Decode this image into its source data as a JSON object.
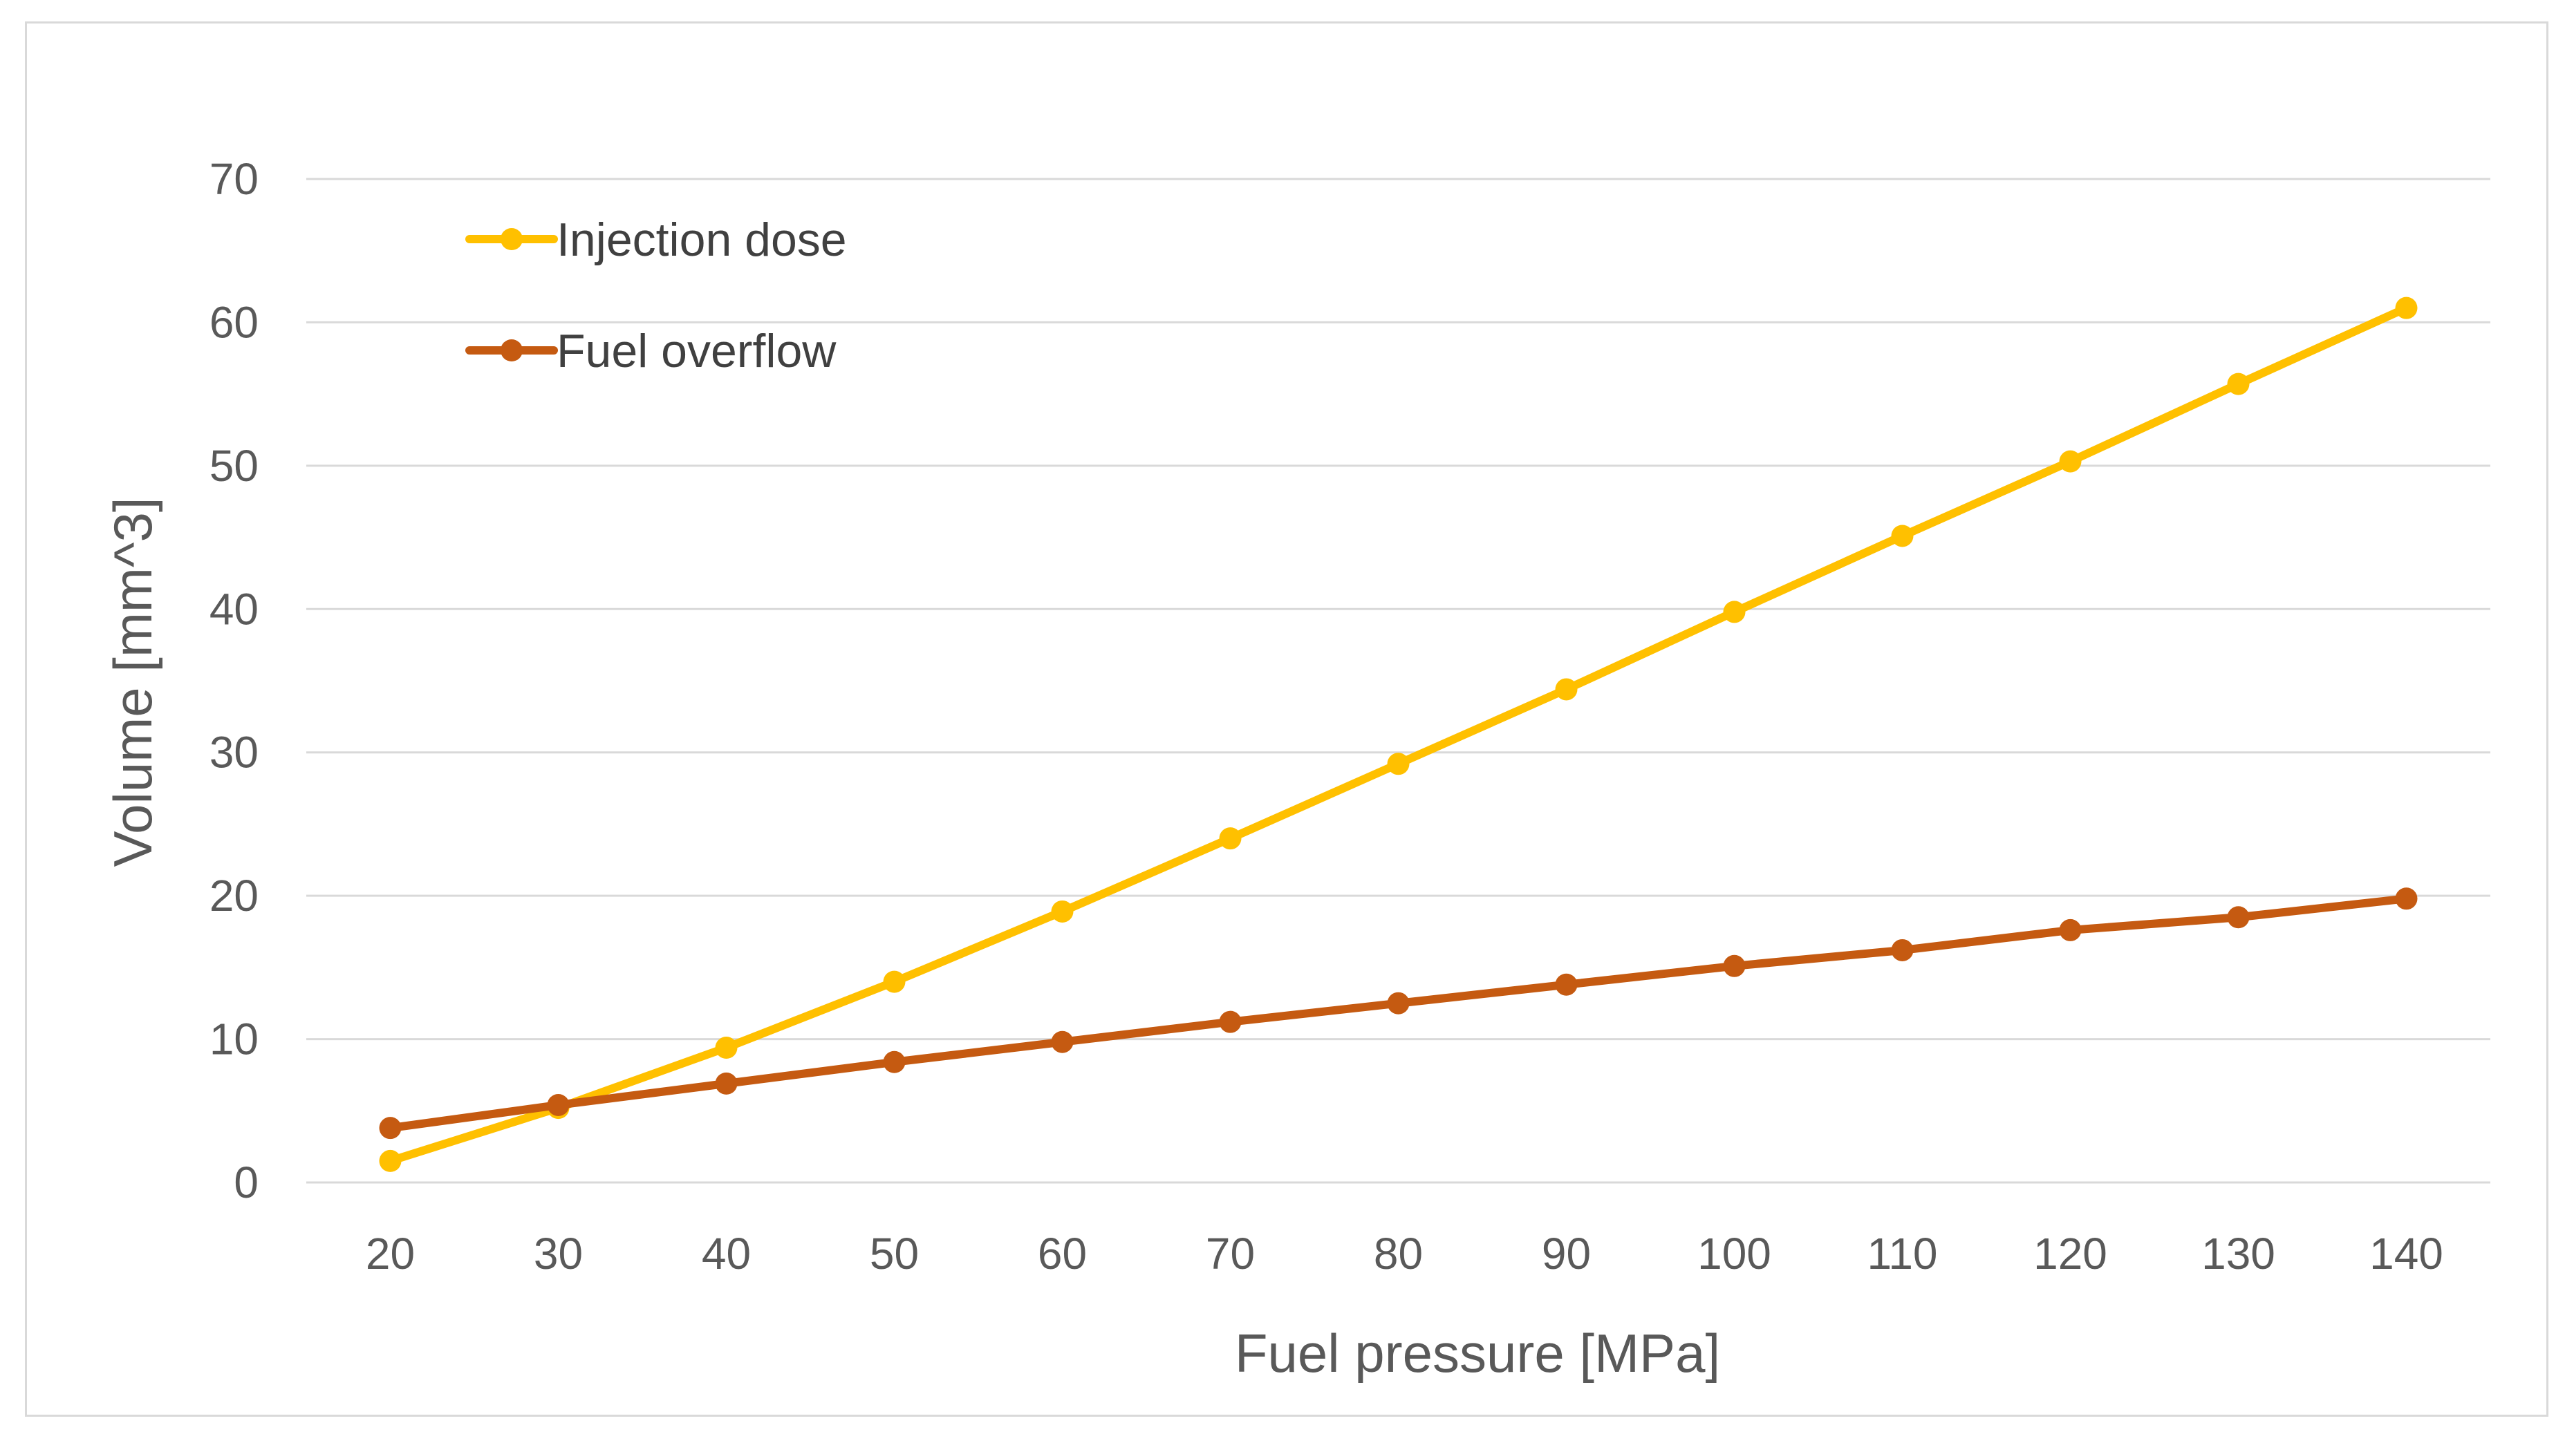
{
  "chart_data": {
    "type": "line",
    "title": "",
    "xlabel": "Fuel pressure [MPa]",
    "ylabel": "Volume [mm^3]",
    "categories": [
      "20",
      "30",
      "40",
      "50",
      "60",
      "70",
      "80",
      "90",
      "100",
      "110",
      "120",
      "130",
      "140"
    ],
    "ylim": [
      0,
      70
    ],
    "yticks": [
      0,
      10,
      20,
      30,
      40,
      50,
      60,
      70
    ],
    "grid": true,
    "legend_position": "top-left",
    "series": [
      {
        "name": "Injection dose",
        "color": "#ffc000",
        "values": [
          1.5,
          5.2,
          9.4,
          14.0,
          18.9,
          24.0,
          29.2,
          34.4,
          39.8,
          45.1,
          50.3,
          55.7,
          61.0
        ]
      },
      {
        "name": "Fuel overflow",
        "color": "#c55a11",
        "values": [
          3.8,
          5.4,
          6.9,
          8.4,
          9.8,
          11.2,
          12.5,
          13.8,
          15.1,
          16.2,
          17.6,
          18.5,
          19.8
        ]
      }
    ]
  },
  "colors": {
    "gridline": "#d9d9d9",
    "text": "#595959"
  }
}
